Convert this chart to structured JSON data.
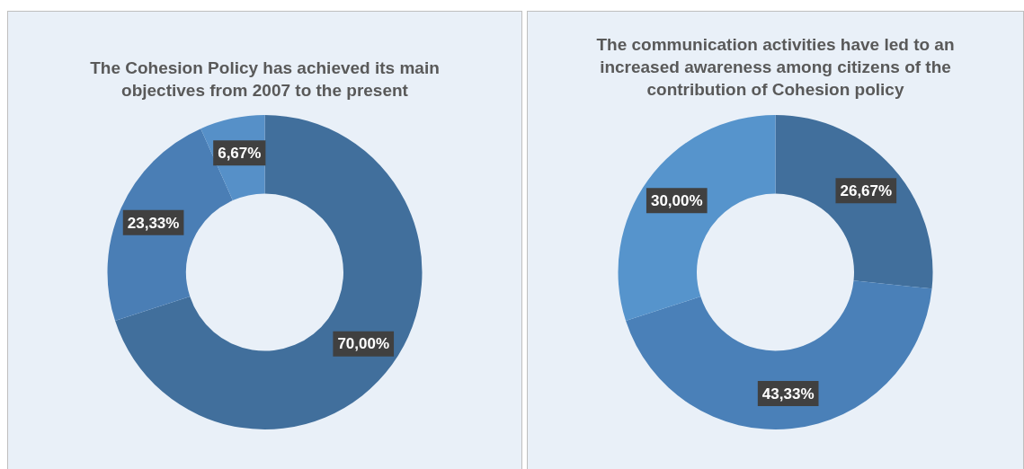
{
  "chart_data": [
    {
      "type": "donut",
      "title": "The Cohesion Policy has achieved its main objectives from 2007 to the present",
      "categories": [
        null,
        null,
        null
      ],
      "values": [
        70,
        23.33,
        6.67
      ],
      "colors": [
        "#416f9c",
        "#4a7eb5",
        "#5690c8"
      ],
      "value_labels": [
        "70,00%",
        "23,33%",
        "6,67%"
      ],
      "legend": false
    },
    {
      "type": "donut",
      "title": "The communication activities have led to an increased awareness among citizens of the contribution of Cohesion policy",
      "categories": [
        null,
        null,
        null
      ],
      "values": [
        26.67,
        43.33,
        30
      ],
      "colors": [
        "#416f9c",
        "#4a80b8",
        "#5694cc"
      ],
      "value_labels": [
        "26,67%",
        "43,33%",
        "30,00%"
      ],
      "legend": false
    }
  ]
}
